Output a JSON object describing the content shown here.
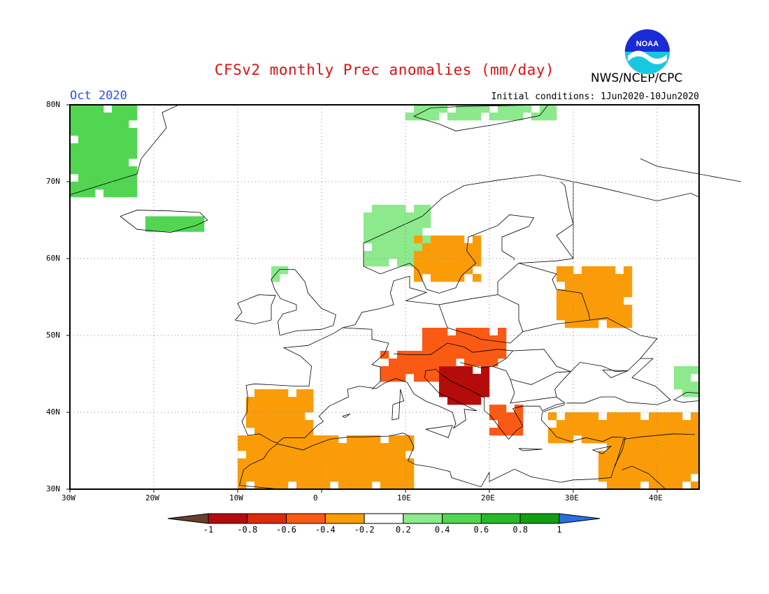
{
  "title": "CFSv2 monthly Prec anomalies (mm/day)",
  "agency": "NWS/NCEP/CPC",
  "month": "Oct 2020",
  "initial_conditions": "Initial conditions: 1Jun2020-10Jun2020",
  "logo": {
    "text": "NOAA",
    "icon": "noaa-logo-icon"
  },
  "axes": {
    "lat_labels": [
      "80N",
      "70N",
      "60N",
      "50N",
      "40N",
      "30N"
    ],
    "lon_labels": [
      "30W",
      "20W",
      "10W",
      "0",
      "10E",
      "20E",
      "30E",
      "40E"
    ],
    "lat_range": [
      30,
      80
    ],
    "lon_range": [
      -30,
      45
    ],
    "grid": "dotted"
  },
  "colorbar": {
    "labels": [
      "-1",
      "-0.8",
      "-0.6",
      "-0.4",
      "-0.2",
      "0.2",
      "0.4",
      "0.6",
      "0.8",
      "1"
    ],
    "colors": [
      "#6b3f2f",
      "#b40c0c",
      "#dc2a0c",
      "#fa5a14",
      "#fa9c08",
      "#ffffff",
      "#8ce98c",
      "#52d652",
      "#28b828",
      "#129e12",
      "#2a6ee6"
    ]
  },
  "chart_data": {
    "type": "heatmap",
    "variable": "Precipitation anomaly",
    "units": "mm/day",
    "levels": [
      -1,
      -0.8,
      -0.6,
      -0.4,
      -0.2,
      0.2,
      0.4,
      0.6,
      0.8,
      1
    ],
    "regions": [
      {
        "region": "Greenland east coast",
        "lon": [
          -30,
          -22
        ],
        "lat": [
          68,
          80
        ],
        "value": 0.5
      },
      {
        "region": "Iceland",
        "lon": [
          -21,
          -14
        ],
        "lat": [
          63.5,
          65
        ],
        "value": 0.5
      },
      {
        "region": "Norway coast",
        "lon": [
          5,
          13
        ],
        "lat": [
          59,
          67
        ],
        "value": 0.3
      },
      {
        "region": "Svalbard",
        "lon": [
          10,
          28
        ],
        "lat": [
          78,
          80
        ],
        "value": 0.3
      },
      {
        "region": "Scotland west",
        "lon": [
          -6,
          -4
        ],
        "lat": [
          57,
          59
        ],
        "value": 0.3
      },
      {
        "region": "Sweden",
        "lon": [
          11,
          19
        ],
        "lat": [
          57,
          63
        ],
        "value": -0.3
      },
      {
        "region": "Western Russia",
        "lon": [
          28,
          37
        ],
        "lat": [
          51,
          59
        ],
        "value": -0.3
      },
      {
        "region": "Iberia",
        "lon": [
          -9,
          -1
        ],
        "lat": [
          36,
          43
        ],
        "value": -0.4
      },
      {
        "region": "Northern Italy / Alps",
        "lon": [
          7,
          16
        ],
        "lat": [
          44,
          48
        ],
        "value": -0.6
      },
      {
        "region": "Balkans / Adriatic",
        "lon": [
          14,
          20
        ],
        "lat": [
          41,
          46
        ],
        "value": -0.9
      },
      {
        "region": "Central Europe",
        "lon": [
          12,
          22
        ],
        "lat": [
          46,
          51
        ],
        "value": -0.5
      },
      {
        "region": "Greece",
        "lon": [
          20,
          24
        ],
        "lat": [
          37,
          41
        ],
        "value": -0.6
      },
      {
        "region": "Turkey",
        "lon": [
          27,
          45
        ],
        "lat": [
          36,
          40
        ],
        "value": -0.4
      },
      {
        "region": "North Africa",
        "lon": [
          -10,
          11
        ],
        "lat": [
          30,
          37
        ],
        "value": -0.3
      },
      {
        "region": "Eastern Mediterranean",
        "lon": [
          33,
          45
        ],
        "lat": [
          30,
          37
        ],
        "value": -0.3
      },
      {
        "region": "Caucasus",
        "lon": [
          42,
          45
        ],
        "lat": [
          42,
          46
        ],
        "value": 0.3
      }
    ]
  }
}
